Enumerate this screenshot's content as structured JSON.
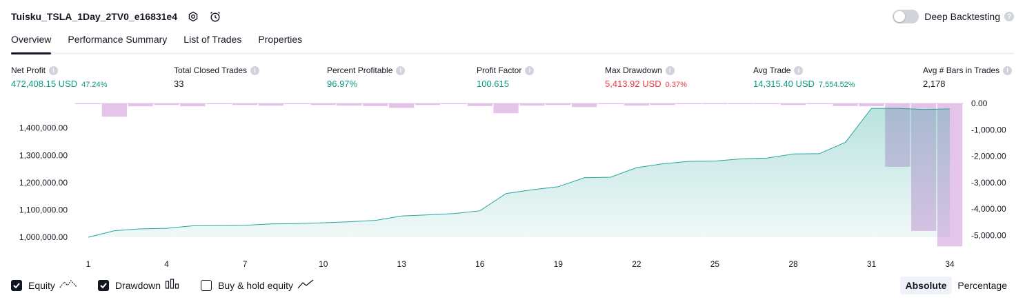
{
  "header": {
    "title": "Tuisku_TSLA_1Day_2TV0_e16831e4",
    "deep_backtesting_label": "Deep Backtesting"
  },
  "tabs": [
    {
      "label": "Overview",
      "active": true
    },
    {
      "label": "Performance Summary",
      "active": false
    },
    {
      "label": "List of Trades",
      "active": false
    },
    {
      "label": "Properties",
      "active": false
    }
  ],
  "metrics": {
    "net_profit": {
      "label": "Net Profit",
      "value": "472,408.15 USD",
      "pct": "47.24%"
    },
    "total_closed_trades": {
      "label": "Total Closed Trades",
      "value": "33"
    },
    "percent_profitable": {
      "label": "Percent Profitable",
      "value": "96.97%"
    },
    "profit_factor": {
      "label": "Profit Factor",
      "value": "100.615"
    },
    "max_drawdown": {
      "label": "Max Drawdown",
      "value": "5,413.92 USD",
      "pct": "0.37%"
    },
    "avg_trade": {
      "label": "Avg Trade",
      "value": "14,315.40 USD",
      "pct": "7,554.52%"
    },
    "avg_bars": {
      "label": "Avg # Bars in Trades",
      "value": "2,178"
    }
  },
  "legend": {
    "equity": "Equity",
    "drawdown": "Drawdown",
    "buy_hold": "Buy & hold equity",
    "equity_checked": true,
    "drawdown_checked": true,
    "buy_hold_checked": false
  },
  "modes": {
    "absolute": "Absolute",
    "percentage": "Percentage",
    "active": "absolute"
  },
  "colors": {
    "equity_line": "#26a69a",
    "drawdown_bar": "#e1bee7",
    "positive": "#089981",
    "negative": "#f23645"
  },
  "chart_data": {
    "type": "area",
    "x_ticks": [
      1,
      4,
      7,
      10,
      13,
      16,
      19,
      22,
      25,
      28,
      31,
      34
    ],
    "left_axis": {
      "ticks": [
        "1,000,000.00",
        "1,100,000.00",
        "1,200,000.00",
        "1,300,000.00",
        "1,400,000.00"
      ],
      "tick_values": [
        1000000,
        1100000,
        1200000,
        1300000,
        1400000
      ],
      "range": [
        965000,
        1490000
      ]
    },
    "right_axis": {
      "ticks": [
        "0.00",
        "-1,000.00",
        "-2,000.00",
        "-3,000.00",
        "-4,000.00",
        "-5,000.00"
      ],
      "tick_values": [
        0,
        -1000,
        -2000,
        -3000,
        -4000,
        -5000
      ],
      "range": [
        -5430,
        0
      ]
    },
    "series": [
      {
        "type": "line",
        "x": [
          1,
          2,
          3,
          4,
          5,
          6,
          7,
          8,
          9,
          10,
          11,
          12,
          13,
          14,
          15,
          16,
          17,
          18,
          19,
          20,
          21,
          22,
          23,
          24,
          25,
          26,
          27,
          28,
          29,
          30,
          31,
          32,
          33,
          34
        ],
        "values": [
          1000000,
          1024000,
          1031000,
          1033000,
          1042000,
          1043000,
          1044000,
          1049000,
          1050000,
          1053000,
          1057000,
          1062000,
          1078000,
          1082000,
          1087000,
          1097000,
          1160000,
          1174000,
          1185000,
          1218000,
          1220000,
          1255000,
          1269000,
          1278000,
          1279000,
          1287000,
          1290000,
          1305000,
          1306000,
          1348000,
          1472000,
          1472000,
          1468000,
          1470000
        ]
      },
      {
        "type": "bar",
        "x": [
          1,
          2,
          3,
          4,
          5,
          6,
          7,
          8,
          9,
          10,
          11,
          12,
          13,
          14,
          15,
          16,
          17,
          18,
          19,
          20,
          21,
          22,
          23,
          24,
          25,
          26,
          27,
          28,
          29,
          30,
          31,
          32,
          33,
          34
        ],
        "values": [
          -30,
          -500,
          -110,
          -60,
          -110,
          -30,
          -60,
          -80,
          -30,
          -60,
          -80,
          -100,
          -170,
          -60,
          -30,
          -100,
          -370,
          -80,
          -60,
          -140,
          -30,
          -80,
          -60,
          -30,
          -30,
          -30,
          -30,
          -60,
          -30,
          -100,
          -110,
          -2400,
          -4830,
          -5414
        ]
      }
    ]
  }
}
